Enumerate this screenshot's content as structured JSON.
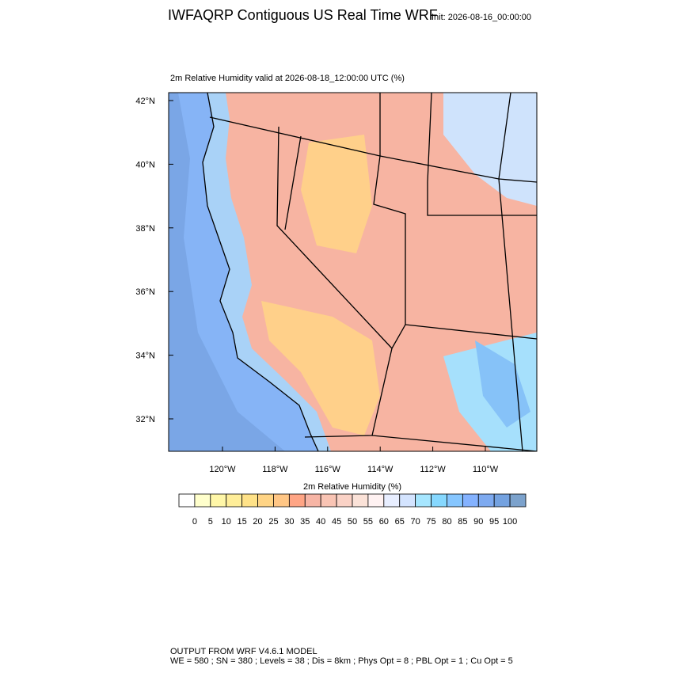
{
  "header": {
    "title": "IWFAQRP Contiguous US Real Time WRF",
    "init": "Init: 2026-08-16_00:00:00"
  },
  "map": {
    "subtitle": "2m Relative Humidity valid at 2026-08-18_12:00:00 UTC   (%)",
    "lat_labels": [
      "42°N",
      "40°N",
      "38°N",
      "36°N",
      "34°N",
      "32°N"
    ],
    "lon_labels": [
      "120°W",
      "118°W",
      "116°W",
      "114°W",
      "112°W",
      "110°W"
    ]
  },
  "colorbar": {
    "title": "2m Relative Humidity  (%)",
    "levels": [
      0,
      5,
      10,
      15,
      20,
      25,
      30,
      35,
      40,
      45,
      50,
      55,
      60,
      65,
      70,
      75,
      80,
      85,
      90,
      95,
      100
    ],
    "colors": [
      "#ffffff",
      "#ffffcc",
      "#fff7a8",
      "#ffee99",
      "#ffe288",
      "#ffd485",
      "#ffc685",
      "#ffa585",
      "#f7b5a5",
      "#f9c4b4",
      "#fad2c6",
      "#fbe2d8",
      "#fff2f2",
      "#e8eeff",
      "#d4e4ff",
      "#a6e6ff",
      "#86d8ff",
      "#86c6ff",
      "#84b2ff",
      "#7eaaf0",
      "#74a2e0",
      "#7ca2cc"
    ]
  },
  "footer": {
    "line1": "OUTPUT FROM WRF V4.6.1 MODEL",
    "line2": "WE = 580 ; SN = 380 ; Levels = 38 ; Dis = 8km ; Phys Opt = 8 ; PBL Opt = 1 ; Cu Opt = 5"
  }
}
